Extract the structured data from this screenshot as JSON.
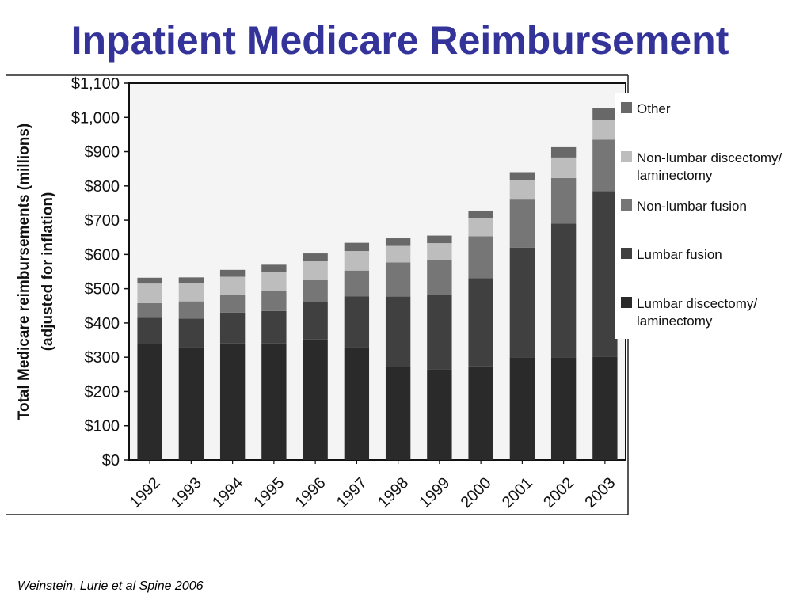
{
  "slide": {
    "title": "Inpatient Medicare Reimbursement",
    "citation": "Weinstein, Lurie et al Spine 2006"
  },
  "colors": {
    "title": "#333399",
    "plot_background": "#f4f4f4"
  },
  "chart_data": {
    "type": "bar",
    "stacked": true,
    "ylabel": "Total Medicare reimbursements (millions) (adjusted for inflation)",
    "ylabel_lines": [
      "Total Medicare reimbursements (millions)",
      "(adjusted for inflation)"
    ],
    "categories": [
      "1992",
      "1993",
      "1994",
      "1995",
      "1996",
      "1997",
      "1998",
      "1999",
      "2000",
      "2001",
      "2002",
      "2003"
    ],
    "ylim": [
      0,
      1100
    ],
    "yticks": [
      0,
      100,
      200,
      300,
      400,
      500,
      600,
      700,
      800,
      900,
      1000,
      1100
    ],
    "ytick_labels": [
      "$0",
      "$100",
      "$200",
      "$300",
      "$400",
      "$500",
      "$600",
      "$700",
      "$800",
      "$900",
      "$1,000",
      "$1,100"
    ],
    "legend_position": "right",
    "series": [
      {
        "name": "Lumbar discectomy/ laminectomy",
        "legend_lines": [
          "Lumbar discectomy/",
          "laminectomy"
        ],
        "color": "#2a2a2a",
        "values": [
          338,
          330,
          340,
          340,
          352,
          330,
          272,
          265,
          273,
          300,
          300,
          302
        ]
      },
      {
        "name": "Lumbar fusion",
        "legend_lines": [
          "Lumbar fusion"
        ],
        "color": "#404040",
        "values": [
          77,
          83,
          90,
          95,
          108,
          148,
          205,
          218,
          258,
          320,
          390,
          483
        ]
      },
      {
        "name": "Non-lumbar fusion",
        "legend_lines": [
          "Non-lumbar fusion"
        ],
        "color": "#767676",
        "values": [
          43,
          50,
          53,
          58,
          65,
          75,
          100,
          100,
          122,
          140,
          133,
          150
        ]
      },
      {
        "name": "Non-lumbar discectomy/ laminectomy",
        "legend_lines": [
          "Non-lumbar discectomy/",
          "laminectomy"
        ],
        "color": "#bdbdbd",
        "values": [
          57,
          53,
          52,
          55,
          55,
          57,
          48,
          50,
          52,
          57,
          60,
          58
        ]
      },
      {
        "name": "Other",
        "legend_lines": [
          "Other"
        ],
        "color": "#686868",
        "values": [
          17,
          17,
          20,
          22,
          23,
          24,
          22,
          22,
          23,
          23,
          30,
          35
        ]
      }
    ]
  }
}
